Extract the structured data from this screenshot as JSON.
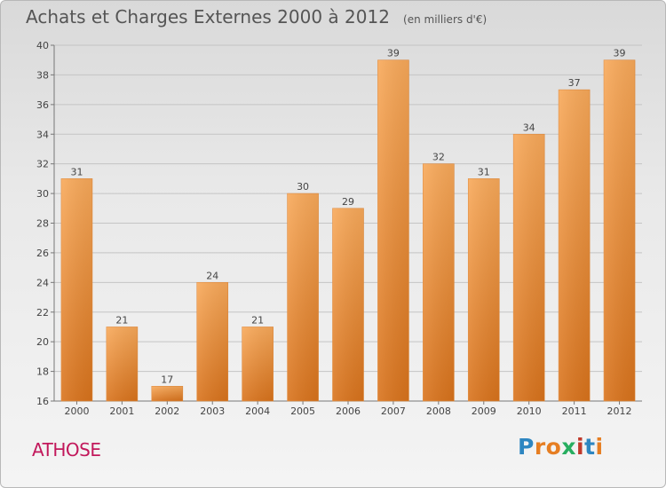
{
  "title": "Achats et Charges Externes 2000 à 2012",
  "unit": "(en milliers d'€)",
  "commune": "ATHOSE",
  "logo_text": "Proxiti",
  "logo_colors": [
    "#2e86c1",
    "#e67e22",
    "#e67e22",
    "#27ae60",
    "#c0392b",
    "#2e86c1",
    "#e67e22"
  ],
  "colors": {
    "bar_top": "#f8a95a",
    "bar_bottom": "#d9731c",
    "commune": "#c2185b"
  },
  "chart_data": {
    "type": "bar",
    "title": "Achats et Charges Externes 2000 à 2012",
    "subtitle": "(en milliers d'€)",
    "categories": [
      "2000",
      "2001",
      "2002",
      "2003",
      "2004",
      "2005",
      "2006",
      "2007",
      "2008",
      "2009",
      "2010",
      "2011",
      "2012"
    ],
    "values": [
      31,
      21,
      17,
      24,
      21,
      30,
      29,
      39,
      32,
      31,
      34,
      37,
      39
    ],
    "ylim": [
      16,
      40
    ],
    "yticks": [
      16,
      18,
      20,
      22,
      24,
      26,
      28,
      30,
      32,
      34,
      36,
      38,
      40
    ],
    "xlabel": "",
    "ylabel": "",
    "grid": true,
    "data_labels": true
  }
}
